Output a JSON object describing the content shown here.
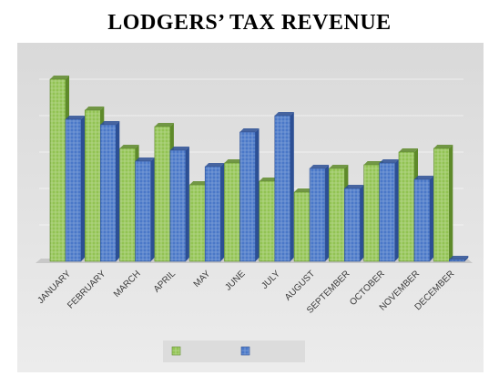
{
  "colors": {
    "series_a": "#92c353",
    "series_a_dark": "#5e8a2a",
    "series_b": "#4a78c8",
    "series_b_dark": "#2c4f94",
    "panel_top": "#d9d9d9",
    "panel_bottom": "#ececec"
  },
  "chart_data": {
    "type": "bar",
    "title": "LODGERS’ TAX REVENUE",
    "categories": [
      "JANUARY",
      "FEBRUARY",
      "MARCH",
      "APRIL",
      "MAY",
      "JUNE",
      "JULY",
      "AUGUST",
      "SEPTEMBER",
      "OCTOBER",
      "NOVEMBER",
      "DECEMBER"
    ],
    "series": [
      {
        "values": [
          100,
          83,
          62,
          74,
          42,
          54,
          44,
          38,
          51,
          53,
          60,
          62
        ]
      },
      {
        "values": [
          78,
          75,
          55,
          61,
          52,
          71,
          80,
          51,
          40,
          54,
          45,
          1
        ]
      }
    ],
    "ylim": [
      0,
      110
    ],
    "grid": true,
    "legend": "bottom",
    "three_d": true
  }
}
